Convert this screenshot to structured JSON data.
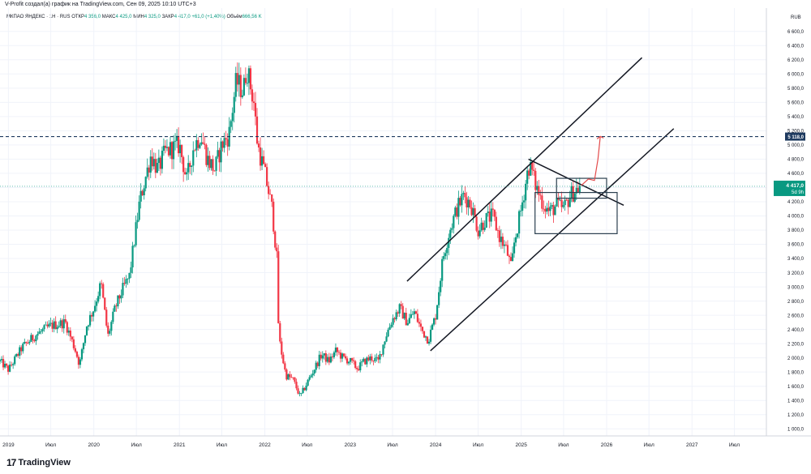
{
  "header": {
    "creator_text": "V-Profit создал(а) график на TradingView.com, Сен 09, 2025 10:10 UTC+3"
  },
  "legend": {
    "symbol": "МКПАО ЯНДЕКС · 1Н · RUS",
    "open_label": "ОТКР",
    "open_value": "4 356,0",
    "high_label": "МАКС",
    "high_value": "4 425,0",
    "low_label": "МИН",
    "low_value": "4 325,0",
    "close_label": "ЗАКР",
    "close_value": "4 417,0",
    "change_value": "+61,0 (+1,40%)",
    "volume_label": "Объём",
    "volume_value": "666,56 K"
  },
  "brand": {
    "logo": "17",
    "name": "TradingView"
  },
  "chart_data": {
    "type": "candlestick",
    "currency_label": "RUB",
    "ylim": [
      900,
      6700
    ],
    "y_ticks": [
      1000,
      1200,
      1400,
      1600,
      1800,
      2000,
      2200,
      2400,
      2600,
      2800,
      3000,
      3200,
      3400,
      3600,
      3800,
      4000,
      4200,
      4400,
      4600,
      4800,
      5000,
      5200,
      5400,
      5600,
      5800,
      6000,
      6200,
      6400,
      6600
    ],
    "y_tick_labels": [
      "1 000,0",
      "1 200,0",
      "1 400,0",
      "1 600,0",
      "1 800,0",
      "2 000,0",
      "2 200,0",
      "2 400,0",
      "2 600,0",
      "2 800,0",
      "3 000,0",
      "3 200,0",
      "3 400,0",
      "3 600,0",
      "3 800,0",
      "4 000,0",
      "4 200,0",
      "4 400,0",
      "4 600,0",
      "4 800,0",
      "5 000,0",
      "5 200,0",
      "5 400,0",
      "5 600,0",
      "5 800,0",
      "6 000,0",
      "6 200,0",
      "6 400,0",
      "6 600,0"
    ],
    "x_range": [
      "2018-11-26",
      "2027-11-15"
    ],
    "x_ticks": [
      {
        "date": "2019-01-01",
        "label": "2019"
      },
      {
        "date": "2019-07-01",
        "label": "Июл"
      },
      {
        "date": "2020-01-01",
        "label": "2020"
      },
      {
        "date": "2020-07-01",
        "label": "Июл"
      },
      {
        "date": "2021-01-01",
        "label": "2021"
      },
      {
        "date": "2021-07-01",
        "label": "Июл"
      },
      {
        "date": "2022-01-01",
        "label": "2022"
      },
      {
        "date": "2022-07-01",
        "label": "Июл"
      },
      {
        "date": "2023-01-01",
        "label": "2023"
      },
      {
        "date": "2023-07-01",
        "label": "Июл"
      },
      {
        "date": "2024-01-01",
        "label": "2024"
      },
      {
        "date": "2024-07-01",
        "label": "Июл"
      },
      {
        "date": "2025-01-01",
        "label": "2025"
      },
      {
        "date": "2025-07-01",
        "label": "Июл"
      },
      {
        "date": "2026-01-01",
        "label": "2026"
      },
      {
        "date": "2026-07-01",
        "label": "Июл"
      },
      {
        "date": "2027-01-01",
        "label": "2027"
      },
      {
        "date": "2027-07-01",
        "label": "Июл"
      }
    ],
    "price_path": [
      [
        "2018-11-26",
        1950
      ],
      [
        "2019-01-01",
        1830
      ],
      [
        "2019-03-01",
        2150
      ],
      [
        "2019-05-01",
        2330
      ],
      [
        "2019-07-01",
        2450
      ],
      [
        "2019-09-01",
        2500
      ],
      [
        "2019-10-15",
        2100
      ],
      [
        "2019-11-01",
        1900
      ],
      [
        "2019-12-01",
        2450
      ],
      [
        "2020-01-01",
        2700
      ],
      [
        "2020-02-01",
        3050
      ],
      [
        "2020-03-01",
        2300
      ],
      [
        "2020-04-01",
        2700
      ],
      [
        "2020-05-01",
        2950
      ],
      [
        "2020-06-01",
        3150
      ],
      [
        "2020-07-15",
        4200
      ],
      [
        "2020-09-01",
        4850
      ],
      [
        "2020-10-01",
        4650
      ],
      [
        "2020-11-01",
        4900
      ],
      [
        "2021-01-01",
        5000
      ],
      [
        "2021-02-01",
        4500
      ],
      [
        "2021-03-01",
        4950
      ],
      [
        "2021-04-01",
        5150
      ],
      [
        "2021-05-01",
        4800
      ],
      [
        "2021-06-01",
        4650
      ],
      [
        "2021-07-01",
        5000
      ],
      [
        "2021-08-01",
        5150
      ],
      [
        "2021-09-01",
        5900
      ],
      [
        "2021-10-01",
        5750
      ],
      [
        "2021-10-15",
        6100
      ],
      [
        "2021-11-15",
        5600
      ],
      [
        "2021-12-01",
        5000
      ],
      [
        "2022-01-01",
        4600
      ],
      [
        "2022-02-01",
        4100
      ],
      [
        "2022-02-24",
        3300
      ],
      [
        "2022-03-01",
        2300
      ],
      [
        "2022-04-01",
        1750
      ],
      [
        "2022-05-01",
        1700
      ],
      [
        "2022-06-01",
        1450
      ],
      [
        "2022-07-01",
        1650
      ],
      [
        "2022-08-01",
        1850
      ],
      [
        "2022-09-01",
        2050
      ],
      [
        "2022-10-01",
        1950
      ],
      [
        "2022-11-01",
        2100
      ],
      [
        "2022-12-01",
        2000
      ],
      [
        "2023-01-01",
        1950
      ],
      [
        "2023-02-01",
        1850
      ],
      [
        "2023-03-01",
        1950
      ],
      [
        "2023-04-01",
        2000
      ],
      [
        "2023-05-01",
        1950
      ],
      [
        "2023-06-01",
        2300
      ],
      [
        "2023-07-01",
        2550
      ],
      [
        "2023-08-01",
        2700
      ],
      [
        "2023-09-01",
        2500
      ],
      [
        "2023-10-01",
        2650
      ],
      [
        "2023-11-01",
        2400
      ],
      [
        "2023-12-01",
        2250
      ],
      [
        "2024-01-01",
        2600
      ],
      [
        "2024-02-01",
        3400
      ],
      [
        "2024-03-01",
        3800
      ],
      [
        "2024-04-01",
        4100
      ],
      [
        "2024-05-01",
        4300
      ],
      [
        "2024-06-01",
        4150
      ],
      [
        "2024-07-01",
        3800
      ],
      [
        "2024-08-01",
        3950
      ],
      [
        "2024-09-01",
        4000
      ],
      [
        "2024-10-01",
        3700
      ],
      [
        "2024-11-01",
        3500
      ],
      [
        "2024-11-20",
        3250
      ],
      [
        "2024-12-01",
        3600
      ],
      [
        "2025-01-01",
        4100
      ],
      [
        "2025-02-01",
        4700
      ],
      [
        "2025-02-15",
        4650
      ],
      [
        "2025-03-01",
        4450
      ],
      [
        "2025-04-01",
        4200
      ],
      [
        "2025-05-01",
        4050
      ],
      [
        "2025-06-01",
        4150
      ],
      [
        "2025-07-01",
        4100
      ],
      [
        "2025-08-01",
        4300
      ],
      [
        "2025-09-09",
        4417
      ]
    ],
    "last_price": {
      "value": 4417,
      "label": "4 417,0",
      "countdown": "5d 9h",
      "color": "#089981"
    },
    "horizontal_line": {
      "value": 5118,
      "label": "5 118,0",
      "color": "#1e3a5f"
    },
    "drawings": {
      "channel_upper": [
        [
          "2023-09-01",
          3080
        ],
        [
          "2026-06-01",
          6230
        ]
      ],
      "channel_lower": [
        [
          "2023-12-10",
          2100
        ],
        [
          "2026-10-15",
          5230
        ]
      ],
      "descending_trendline": [
        [
          "2025-02-01",
          4800
        ],
        [
          "2026-03-15",
          4150
        ]
      ],
      "box_large": [
        [
          "2025-03-01",
          3750
        ],
        [
          "2026-02-15",
          4330
        ]
      ],
      "box_small": [
        [
          "2025-06-01",
          4250
        ],
        [
          "2026-01-01",
          4530
        ]
      ],
      "projection_arrow": [
        [
          "2025-09-15",
          4430
        ],
        [
          "2025-10-15",
          4520
        ],
        [
          "2025-11-10",
          4500
        ],
        [
          "2025-11-25",
          4800
        ],
        [
          "2025-12-05",
          5120
        ]
      ],
      "line_color": "#131722",
      "box_color": "#2b3f4f",
      "arrow_color": "#e34a4a"
    },
    "candle_colors": {
      "up": "#089981",
      "down": "#f23645"
    }
  }
}
